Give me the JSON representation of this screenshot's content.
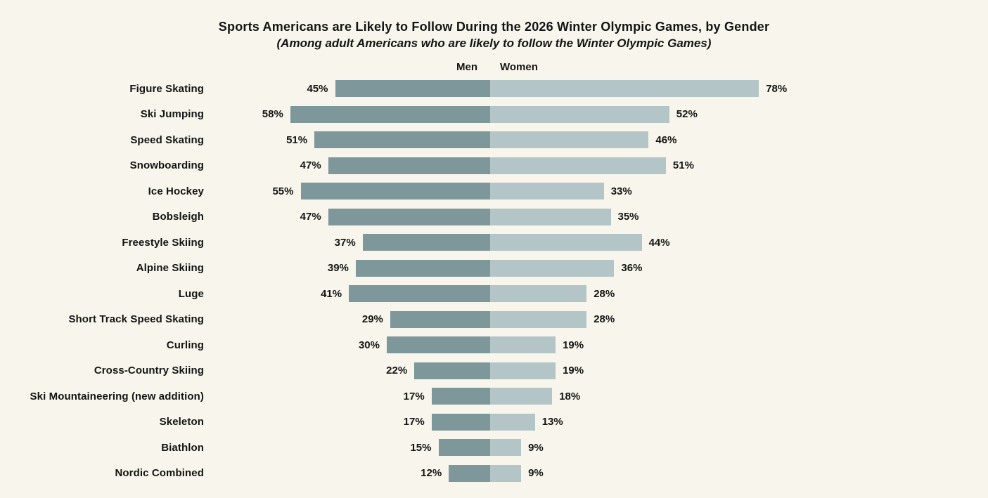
{
  "title": "Sports Americans are Likely to Follow During the 2026 Winter Olympic Games, by Gender",
  "subtitle": "(Among adult Americans who are likely to follow the Winter Olympic Games)",
  "legend": {
    "men_label": "Men",
    "women_label": "Women"
  },
  "colors": {
    "men_bar": "#7e979b",
    "women_bar": "#b3c5c6",
    "background": "#f8f5ec",
    "text": "#141414"
  },
  "chart_data": {
    "type": "bar",
    "variant": "diverging-horizontal",
    "title": "Sports Americans are Likely to Follow During the 2026 Winter Olympic Games, by Gender",
    "subtitle": "(Among adult Americans who are likely to follow the Winter Olympic Games)",
    "value_unit": "percent",
    "value_suffix": "%",
    "axis_range_percent": [
      0,
      80
    ],
    "grid": false,
    "legend_position": "top-center",
    "categories": [
      "Figure Skating",
      "Ski Jumping",
      "Speed Skating",
      "Snowboarding",
      "Ice Hockey",
      "Bobsleigh",
      "Freestyle Skiing",
      "Alpine Skiing",
      "Luge",
      "Short Track Speed Skating",
      "Curling",
      "Cross-Country Skiing",
      "Ski Mountaineering (new addition)",
      "Skeleton",
      "Biathlon",
      "Nordic Combined"
    ],
    "series": [
      {
        "name": "Men",
        "side": "left",
        "values": [
          45,
          58,
          51,
          47,
          55,
          47,
          37,
          39,
          41,
          29,
          30,
          22,
          17,
          17,
          15,
          12
        ]
      },
      {
        "name": "Women",
        "side": "right",
        "values": [
          78,
          52,
          46,
          51,
          33,
          35,
          44,
          36,
          28,
          28,
          19,
          19,
          18,
          13,
          9,
          9
        ]
      }
    ]
  }
}
